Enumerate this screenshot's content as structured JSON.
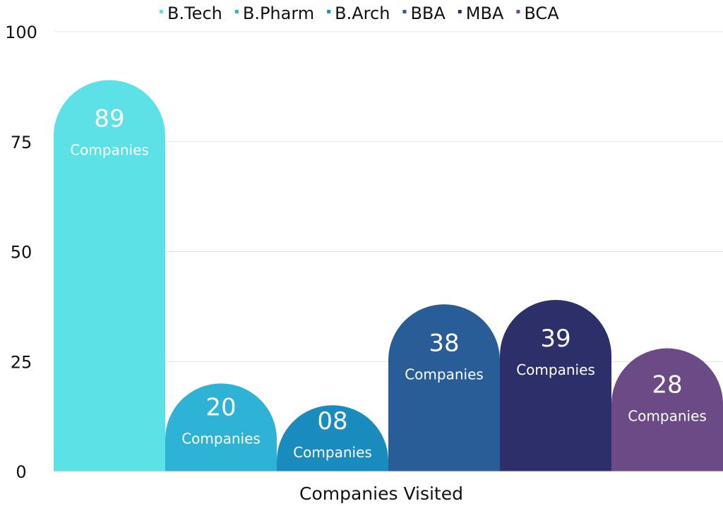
{
  "chart_data": {
    "type": "bar",
    "title": "",
    "xlabel": "Companies Visited",
    "ylabel": "",
    "ylim": [
      0,
      100
    ],
    "yticks": [
      "0",
      "25",
      "50",
      "75",
      "100"
    ],
    "grid": true,
    "legend_position": "top",
    "categories": [
      "B.Tech",
      "B.Pharm",
      "B.Arch",
      "BBA",
      "MBA",
      "BCA"
    ],
    "values": [
      89,
      20,
      8,
      38,
      39,
      28
    ],
    "data_labels": [
      "89",
      "20",
      "08",
      "38",
      "39",
      "28"
    ],
    "data_label_suffix": "Companies",
    "colors": [
      "#5ce1e6",
      "#2eb3d6",
      "#1a8bbd",
      "#285d98",
      "#2d2f6b",
      "#6b4a86"
    ]
  }
}
